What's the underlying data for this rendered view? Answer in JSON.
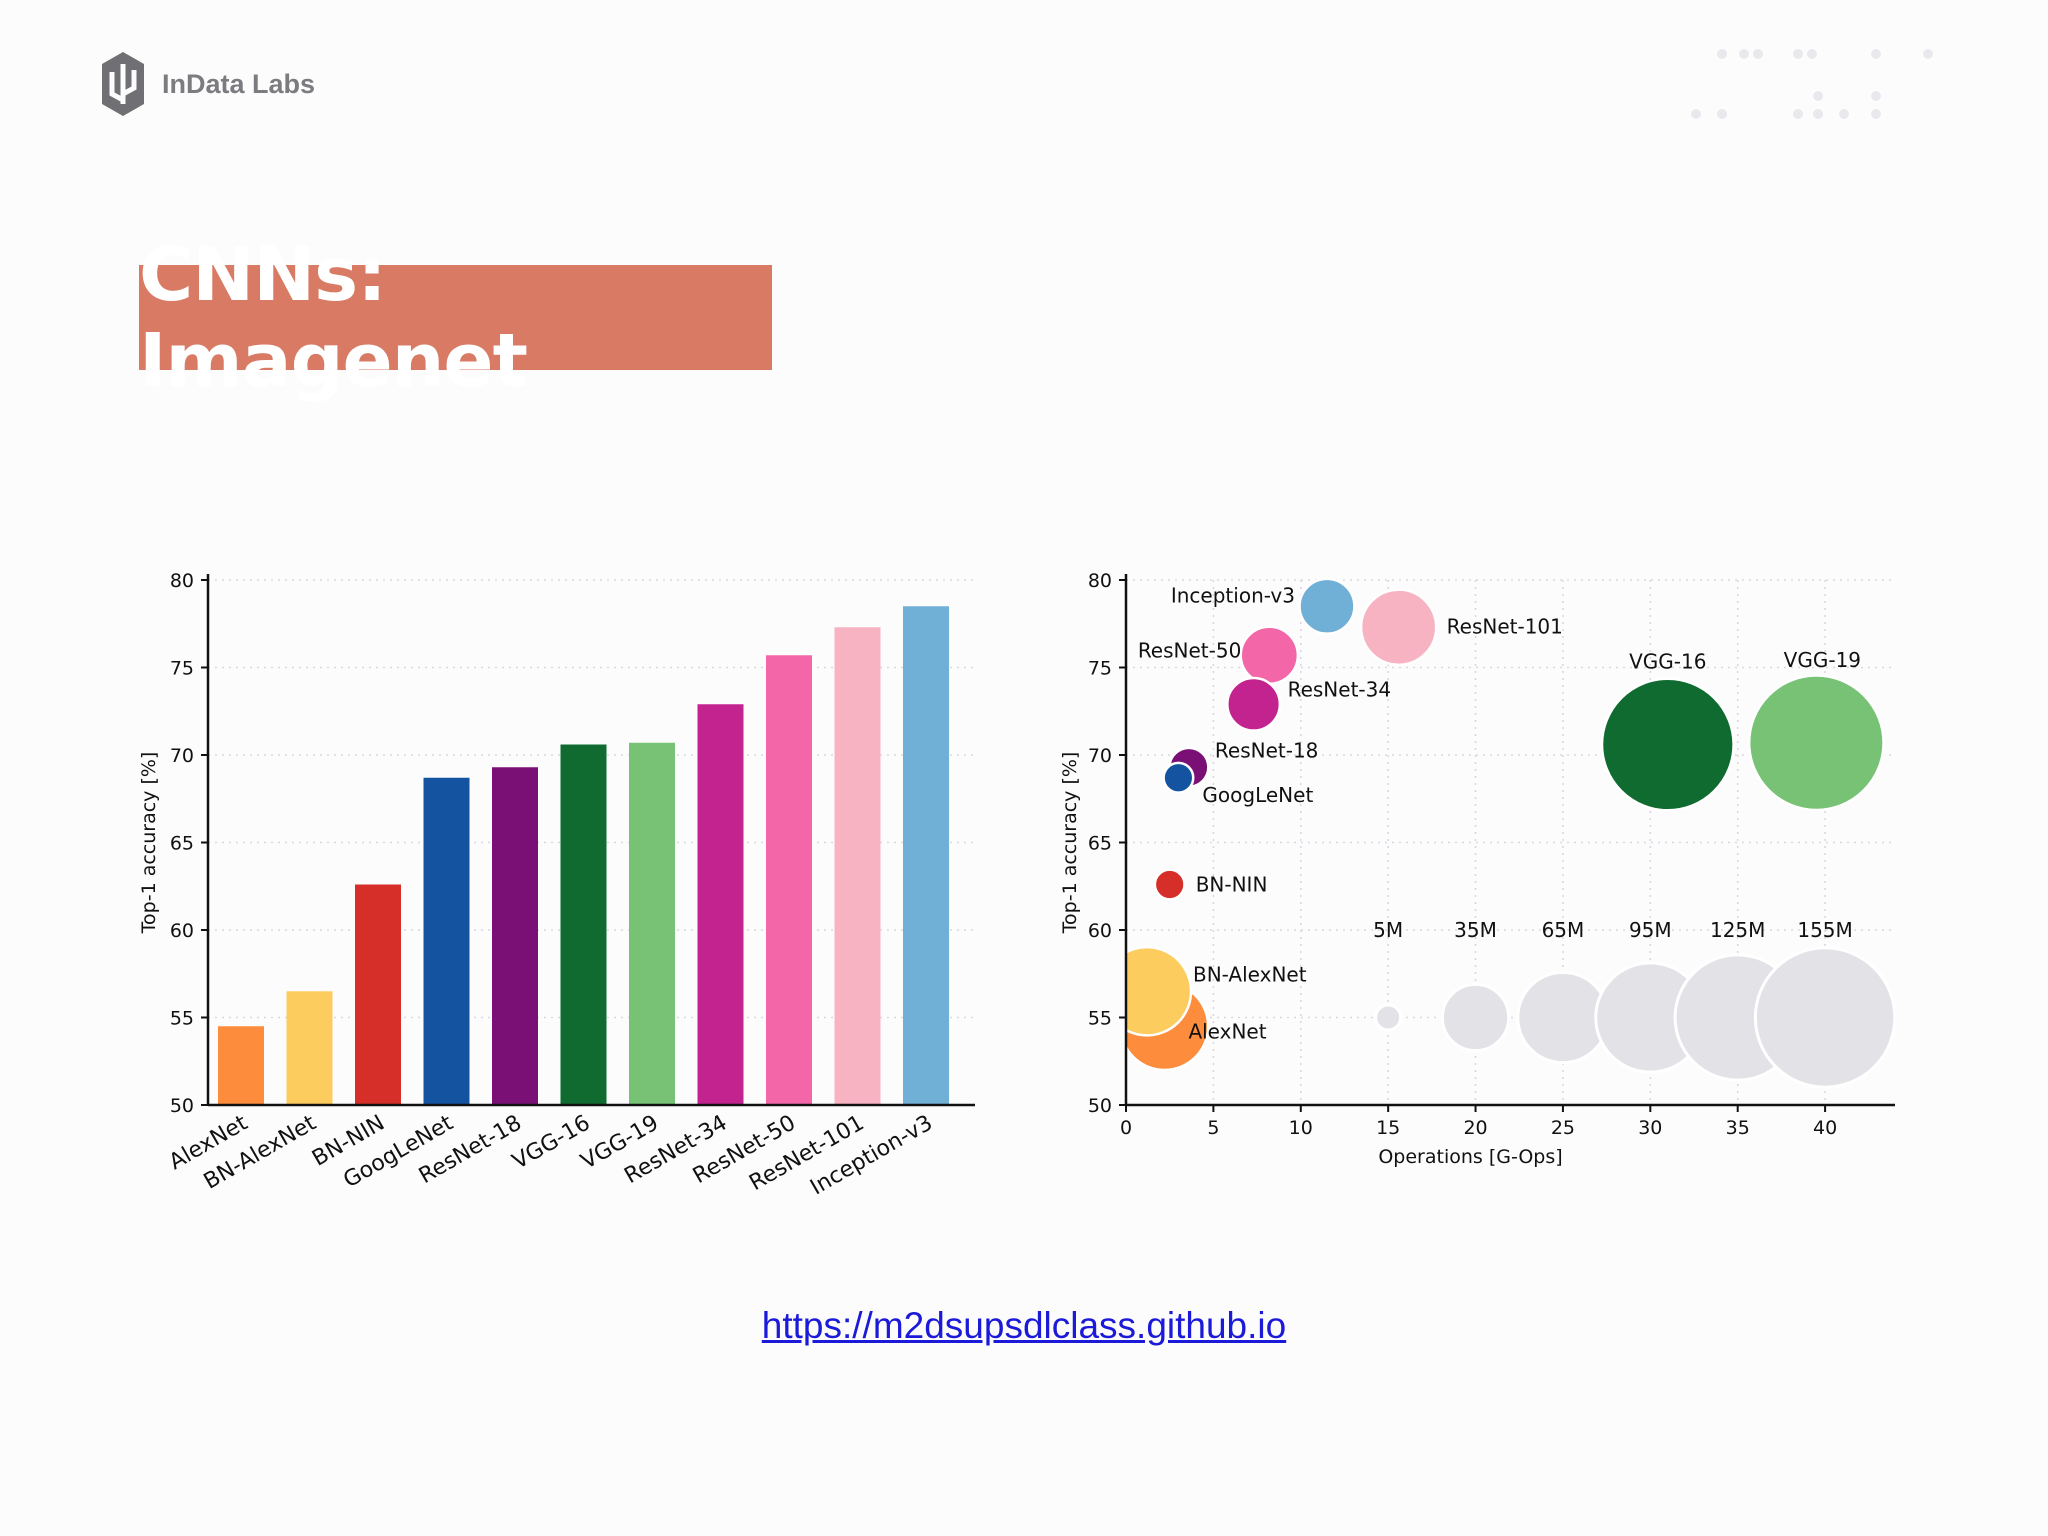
{
  "logo": {
    "text": "InData Labs",
    "icon": "indata-labs-logo-icon"
  },
  "title": "CNNs: Imagenet",
  "link": "https://m2dsupsdlclass.github.io",
  "colors": {
    "title_bg": "#d87a64",
    "link": "#1a1ad8",
    "AlexNet": "#fd8d3c",
    "BN-AlexNet": "#fdcc5e",
    "BN-NIN": "#d62f2a",
    "GoogLeNet": "#1453a0",
    "ResNet-18": "#7a0f75",
    "VGG-16": "#0f6b2f",
    "VGG-19": "#77c275",
    "ResNet-34": "#c3238e",
    "ResNet-50": "#f367a8",
    "ResNet-101": "#f8b3c2",
    "Inception-v3": "#70b0d6",
    "reference": "#e3e2e6"
  },
  "chart_data": [
    {
      "type": "bar",
      "ylabel": "Top-1 accuracy [%]",
      "ylim": [
        50,
        80
      ],
      "yticks": [
        50,
        55,
        60,
        65,
        70,
        75,
        80
      ],
      "grid": true,
      "categories": [
        "AlexNet",
        "BN-AlexNet",
        "BN-NIN",
        "GoogLeNet",
        "ResNet-18",
        "VGG-16",
        "VGG-19",
        "ResNet-34",
        "ResNet-50",
        "ResNet-101",
        "Inception-v3"
      ],
      "values": [
        54.5,
        56.5,
        62.6,
        68.7,
        69.3,
        70.6,
        70.7,
        72.9,
        75.7,
        77.3,
        78.5
      ]
    },
    {
      "type": "scatter",
      "xlabel": "Operations [G-Ops]",
      "ylabel": "Top-1 accuracy [%]",
      "xlim": [
        0,
        44
      ],
      "ylim": [
        50,
        80
      ],
      "xticks": [
        0,
        5,
        10,
        15,
        20,
        25,
        30,
        35,
        40
      ],
      "yticks": [
        50,
        55,
        60,
        65,
        70,
        75,
        80
      ],
      "grid": true,
      "points": [
        {
          "name": "AlexNet",
          "x": 2.2,
          "y": 54.5,
          "params_M": 61
        },
        {
          "name": "BN-AlexNet",
          "x": 1.2,
          "y": 56.5,
          "params_M": 62
        },
        {
          "name": "BN-NIN",
          "x": 2.5,
          "y": 62.6,
          "params_M": 7
        },
        {
          "name": "GoogLeNet",
          "x": 3.0,
          "y": 68.7,
          "params_M": 7
        },
        {
          "name": "ResNet-18",
          "x": 3.6,
          "y": 69.3,
          "params_M": 12
        },
        {
          "name": "VGG-16",
          "x": 31.0,
          "y": 70.6,
          "params_M": 138
        },
        {
          "name": "VGG-19",
          "x": 39.5,
          "y": 70.7,
          "params_M": 144
        },
        {
          "name": "ResNet-34",
          "x": 7.3,
          "y": 72.9,
          "params_M": 22
        },
        {
          "name": "ResNet-50",
          "x": 8.2,
          "y": 75.7,
          "params_M": 26
        },
        {
          "name": "ResNet-101",
          "x": 15.6,
          "y": 77.3,
          "params_M": 45
        },
        {
          "name": "Inception-v3",
          "x": 11.5,
          "y": 78.5,
          "params_M": 24
        }
      ],
      "size_reference": [
        {
          "label": "5M",
          "x": 15,
          "y": 55,
          "params_M": 5
        },
        {
          "label": "35M",
          "x": 20,
          "y": 55,
          "params_M": 35
        },
        {
          "label": "65M",
          "x": 25,
          "y": 55,
          "params_M": 65
        },
        {
          "label": "95M",
          "x": 30,
          "y": 55,
          "params_M": 95
        },
        {
          "label": "125M",
          "x": 35,
          "y": 55,
          "params_M": 125
        },
        {
          "label": "155M",
          "x": 40,
          "y": 55,
          "params_M": 155
        }
      ]
    }
  ]
}
